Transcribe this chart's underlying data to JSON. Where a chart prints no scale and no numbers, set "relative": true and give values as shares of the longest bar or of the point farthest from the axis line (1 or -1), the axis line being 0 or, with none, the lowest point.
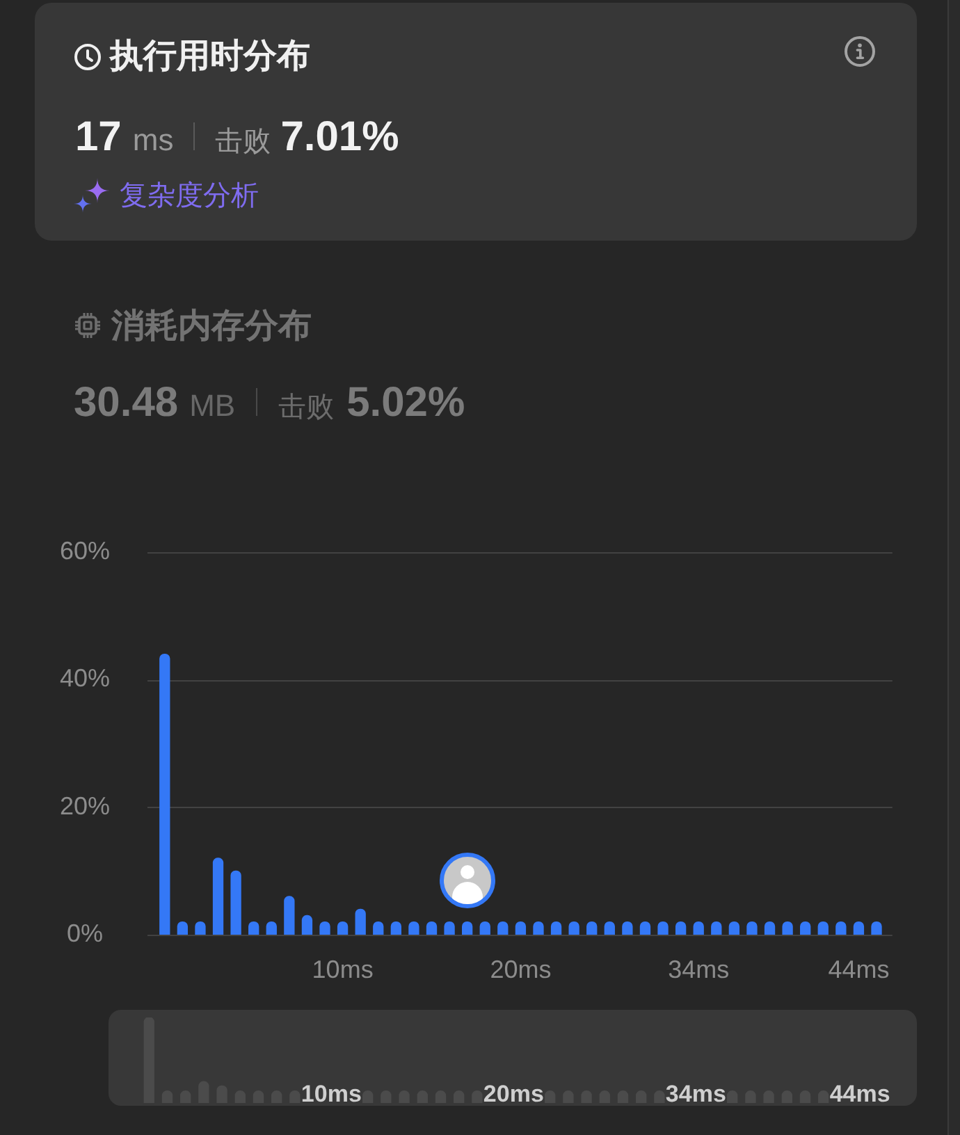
{
  "chart_data": [
    {
      "type": "bar",
      "title": "执行用时分布",
      "annotations": [
        "17",
        "ms",
        "击败",
        "7.01%",
        "复杂度分析",
        "消耗内存分布",
        "30.48",
        "MB",
        "击败",
        "5.02%"
      ],
      "categories": [
        null,
        null,
        null,
        null,
        null,
        null,
        null,
        null,
        null,
        null,
        "10ms",
        null,
        null,
        null,
        null,
        null,
        null,
        null,
        null,
        null,
        "20ms",
        null,
        null,
        null,
        null,
        null,
        null,
        null,
        null,
        null,
        "34ms",
        null,
        null,
        null,
        null,
        null,
        null,
        null,
        null,
        "44ms",
        null
      ],
      "values": [
        44,
        2,
        2,
        12,
        10,
        2,
        2,
        6,
        3,
        2,
        2,
        4,
        2,
        2,
        2,
        2,
        2,
        2,
        2,
        2,
        2,
        2,
        2,
        2,
        2,
        2,
        2,
        2,
        2,
        2,
        2,
        2,
        2,
        2,
        2,
        2,
        2,
        2,
        2,
        2,
        2
      ],
      "color": "#3478f6",
      "ylim": [
        0,
        60
      ],
      "yticks": [
        {
          "value": 0,
          "label": "0%"
        },
        {
          "value": 20,
          "label": "20%"
        },
        {
          "value": 40,
          "label": "40%"
        },
        {
          "value": 60,
          "label": "60%"
        }
      ],
      "grid": "y"
    },
    {
      "type": "bar",
      "relative": true,
      "categories": [
        null,
        null,
        null,
        null,
        null,
        null,
        null,
        null,
        null,
        null,
        "10ms",
        null,
        null,
        null,
        null,
        null,
        null,
        null,
        null,
        null,
        "20ms",
        null,
        null,
        null,
        null,
        null,
        null,
        null,
        null,
        null,
        "34ms",
        null,
        null,
        null,
        null,
        null,
        null,
        null,
        null,
        "44ms",
        null
      ],
      "values": [
        1,
        0.14,
        0.14,
        0.25,
        0.2,
        0.14,
        0.14,
        0.14,
        0.14,
        null,
        null,
        null,
        0.14,
        0.14,
        0.14,
        0.14,
        0.14,
        0.14,
        0.14,
        null,
        null,
        null,
        0.14,
        0.14,
        0.14,
        0.14,
        0.14,
        0.14,
        0.14,
        null,
        null,
        null,
        0.14,
        0.14,
        0.14,
        0.14,
        0.14,
        0.14,
        null,
        null,
        null
      ],
      "color": "#4b4b4b"
    }
  ]
}
